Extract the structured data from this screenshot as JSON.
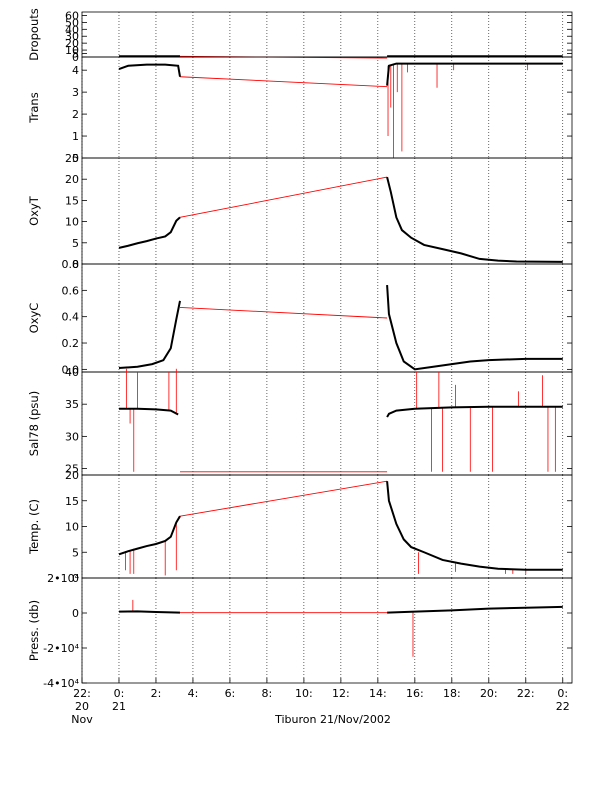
{
  "chart_data": {
    "type": "line",
    "caption": "Tiburon 21/Nov/2002",
    "colors": {
      "data": "#000000",
      "gap_and_spikes": "#ff0000",
      "grid_dots": "#000000"
    },
    "x_axis": {
      "unit": "hours from 21 Nov 2002 00:00",
      "range": [
        -2,
        24.5
      ],
      "ticks": [
        {
          "value": -2,
          "lines": [
            "22:",
            "20",
            "Nov"
          ]
        },
        {
          "value": 0,
          "lines": [
            "0:",
            "21"
          ]
        },
        {
          "value": 2,
          "lines": [
            "2:"
          ]
        },
        {
          "value": 4,
          "lines": [
            "4:"
          ]
        },
        {
          "value": 6,
          "lines": [
            "6:"
          ]
        },
        {
          "value": 8,
          "lines": [
            "8:"
          ]
        },
        {
          "value": 10,
          "lines": [
            "10:"
          ]
        },
        {
          "value": 12,
          "lines": [
            "12:"
          ]
        },
        {
          "value": 14,
          "lines": [
            "14:"
          ]
        },
        {
          "value": 16,
          "lines": [
            "16:"
          ]
        },
        {
          "value": 18,
          "lines": [
            "18:"
          ]
        },
        {
          "value": 20,
          "lines": [
            "20:"
          ]
        },
        {
          "value": 22,
          "lines": [
            "22:"
          ]
        },
        {
          "value": 24,
          "lines": [
            "0:",
            "22"
          ]
        }
      ]
    },
    "data_gap": {
      "start": 3.3,
      "end": 14.5
    },
    "panels": [
      {
        "id": "dropouts",
        "ylabel": "Dropouts",
        "ylim": [
          0,
          65
        ],
        "ticks": [
          {
            "v": 0,
            "t": "0"
          },
          {
            "v": 5,
            "t": "5"
          },
          {
            "v": 10,
            "t": "10"
          },
          {
            "v": 20,
            "t": "20"
          },
          {
            "v": 30,
            "t": "30"
          },
          {
            "v": 40,
            "t": "40"
          },
          {
            "v": 50,
            "t": "50"
          },
          {
            "v": 60,
            "t": "60"
          }
        ],
        "series": [
          {
            "x": 0,
            "y": 1
          },
          {
            "x": 1,
            "y": 1
          },
          {
            "x": 2,
            "y": 1
          },
          {
            "x": 3.3,
            "y": 1
          },
          {
            "x": 14.5,
            "y": 1
          },
          {
            "x": 16,
            "y": 1
          },
          {
            "x": 20,
            "y": 1
          },
          {
            "x": 24,
            "y": 1
          }
        ],
        "gap_line": [
          {
            "x": 3.3,
            "y": 1
          },
          {
            "x": 14.5,
            "y": -1.5
          }
        ],
        "spikes": []
      },
      {
        "id": "trans",
        "ylabel": "Trans",
        "ylim": [
          0,
          4.6
        ],
        "ticks": [
          {
            "v": 0,
            "t": "0"
          },
          {
            "v": 1,
            "t": "1"
          },
          {
            "v": 2,
            "t": "2"
          },
          {
            "v": 3,
            "t": "3"
          },
          {
            "v": 4,
            "t": "4"
          }
        ],
        "series": [
          {
            "x": 0,
            "y": 4.05
          },
          {
            "x": 0.5,
            "y": 4.2
          },
          {
            "x": 1.5,
            "y": 4.25
          },
          {
            "x": 2.5,
            "y": 4.25
          },
          {
            "x": 3.2,
            "y": 4.2
          },
          {
            "x": 3.3,
            "y": 3.7
          },
          {
            "x": 14.5,
            "y": 3.3
          },
          {
            "x": 14.6,
            "y": 4.2
          },
          {
            "x": 15,
            "y": 4.3
          },
          {
            "x": 18,
            "y": 4.3
          },
          {
            "x": 21,
            "y": 4.3
          },
          {
            "x": 24,
            "y": 4.3
          }
        ],
        "gap_line": [
          {
            "x": 3.3,
            "y": 3.7
          },
          {
            "x": 14.5,
            "y": 3.25
          }
        ],
        "spikes": [
          {
            "x": 14.55,
            "y": 1.0
          },
          {
            "x": 14.7,
            "y": 2.3
          },
          {
            "x": 14.85,
            "y": 0.0
          },
          {
            "x": 15.05,
            "y": 3.0
          },
          {
            "x": 15.3,
            "y": 0.3
          },
          {
            "x": 15.6,
            "y": 3.9
          },
          {
            "x": 17.2,
            "y": 3.2
          },
          {
            "x": 18.1,
            "y": 4.0
          },
          {
            "x": 22.1,
            "y": 4.0
          }
        ]
      },
      {
        "id": "oxyt",
        "ylabel": "OxyT",
        "ylim": [
          0,
          25
        ],
        "ticks": [
          {
            "v": 0,
            "t": "0"
          },
          {
            "v": 5,
            "t": "5"
          },
          {
            "v": 10,
            "t": "10"
          },
          {
            "v": 15,
            "t": "15"
          },
          {
            "v": 20,
            "t": "20"
          },
          {
            "v": 25,
            "t": "25"
          }
        ],
        "series": [
          {
            "x": 0,
            "y": 3.8
          },
          {
            "x": 0.5,
            "y": 4.3
          },
          {
            "x": 1,
            "y": 4.9
          },
          {
            "x": 1.5,
            "y": 5.4
          },
          {
            "x": 2,
            "y": 6.0
          },
          {
            "x": 2.5,
            "y": 6.5
          },
          {
            "x": 2.8,
            "y": 7.5
          },
          {
            "x": 3.1,
            "y": 10.2
          },
          {
            "x": 3.3,
            "y": 11.0
          },
          {
            "x": 14.5,
            "y": 20.5
          },
          {
            "x": 14.7,
            "y": 17.0
          },
          {
            "x": 15.0,
            "y": 11.0
          },
          {
            "x": 15.3,
            "y": 8.0
          },
          {
            "x": 15.8,
            "y": 6.2
          },
          {
            "x": 16.5,
            "y": 4.5
          },
          {
            "x": 17.5,
            "y": 3.5
          },
          {
            "x": 18.5,
            "y": 2.5
          },
          {
            "x": 19.5,
            "y": 1.2
          },
          {
            "x": 20.5,
            "y": 0.8
          },
          {
            "x": 21.5,
            "y": 0.6
          },
          {
            "x": 24,
            "y": 0.5
          }
        ],
        "gap_line": [
          {
            "x": 3.3,
            "y": 11.0
          },
          {
            "x": 14.5,
            "y": 20.5
          }
        ],
        "spikes": []
      },
      {
        "id": "oxyc",
        "ylabel": "OxyC",
        "ylim": [
          -0.02,
          0.8
        ],
        "ticks": [
          {
            "v": 0,
            "t": "0.0"
          },
          {
            "v": 0.2,
            "t": "0.2"
          },
          {
            "v": 0.4,
            "t": "0.4"
          },
          {
            "v": 0.6,
            "t": "0.6"
          },
          {
            "v": 0.8,
            "t": "0.8"
          }
        ],
        "series": [
          {
            "x": 0,
            "y": 0.01
          },
          {
            "x": 1,
            "y": 0.02
          },
          {
            "x": 1.8,
            "y": 0.04
          },
          {
            "x": 2.4,
            "y": 0.07
          },
          {
            "x": 2.8,
            "y": 0.16
          },
          {
            "x": 3.1,
            "y": 0.38
          },
          {
            "x": 3.3,
            "y": 0.52
          },
          {
            "x": 14.5,
            "y": 0.64
          },
          {
            "x": 14.6,
            "y": 0.42
          },
          {
            "x": 15.0,
            "y": 0.2
          },
          {
            "x": 15.4,
            "y": 0.06
          },
          {
            "x": 16,
            "y": 0.0
          },
          {
            "x": 17,
            "y": 0.02
          },
          {
            "x": 18,
            "y": 0.04
          },
          {
            "x": 19,
            "y": 0.06
          },
          {
            "x": 20,
            "y": 0.07
          },
          {
            "x": 22,
            "y": 0.08
          },
          {
            "x": 24,
            "y": 0.08
          }
        ],
        "gap_line": [
          {
            "x": 3.3,
            "y": 0.47
          },
          {
            "x": 14.5,
            "y": 0.39
          }
        ],
        "spikes": []
      },
      {
        "id": "sal78",
        "ylabel": "Sal78 (psu)",
        "ylim": [
          24,
          40
        ],
        "ticks": [
          {
            "v": 25,
            "t": "25"
          },
          {
            "v": 30,
            "t": "30"
          },
          {
            "v": 35,
            "t": "35"
          },
          {
            "v": 40,
            "t": "40"
          }
        ],
        "series": [
          {
            "x": 0,
            "y": 34.3
          },
          {
            "x": 1,
            "y": 34.3
          },
          {
            "x": 2,
            "y": 34.2
          },
          {
            "x": 2.8,
            "y": 34.0
          },
          {
            "x": 3.2,
            "y": 33.4
          },
          {
            "x": 14.5,
            "y": 33.0
          },
          {
            "x": 14.6,
            "y": 33.5
          },
          {
            "x": 15,
            "y": 34.0
          },
          {
            "x": 16,
            "y": 34.3
          },
          {
            "x": 18,
            "y": 34.5
          },
          {
            "x": 20,
            "y": 34.6
          },
          {
            "x": 24,
            "y": 34.6
          }
        ],
        "gap_line": [
          {
            "x": 3.3,
            "y": 24.5
          },
          {
            "x": 14.5,
            "y": 24.5
          }
        ],
        "spikes": [
          {
            "x": 0.4,
            "y": 40.5
          },
          {
            "x": 0.6,
            "y": 32.0
          },
          {
            "x": 0.8,
            "y": 24.5
          },
          {
            "x": 1.0,
            "y": 40.0
          },
          {
            "x": 2.7,
            "y": 40.0
          },
          {
            "x": 3.1,
            "y": 40.5
          },
          {
            "x": 16.1,
            "y": 40.0
          },
          {
            "x": 16.9,
            "y": 24.5
          },
          {
            "x": 17.3,
            "y": 40.0
          },
          {
            "x": 17.5,
            "y": 24.5
          },
          {
            "x": 18.2,
            "y": 38.0
          },
          {
            "x": 19.0,
            "y": 24.5
          },
          {
            "x": 20.2,
            "y": 24.5
          },
          {
            "x": 21.6,
            "y": 37.0
          },
          {
            "x": 22.9,
            "y": 39.5
          },
          {
            "x": 23.2,
            "y": 24.5
          },
          {
            "x": 23.6,
            "y": 24.5
          }
        ]
      },
      {
        "id": "temp",
        "ylabel": "Temp. (C)",
        "ylim": [
          0,
          20
        ],
        "ticks": [
          {
            "v": 0,
            "t": "0"
          },
          {
            "v": 5,
            "t": "5"
          },
          {
            "v": 10,
            "t": "10"
          },
          {
            "v": 15,
            "t": "15"
          },
          {
            "v": 20,
            "t": "20"
          }
        ],
        "series": [
          {
            "x": 0,
            "y": 4.6
          },
          {
            "x": 0.5,
            "y": 5.2
          },
          {
            "x": 1,
            "y": 5.7
          },
          {
            "x": 1.5,
            "y": 6.2
          },
          {
            "x": 2,
            "y": 6.6
          },
          {
            "x": 2.5,
            "y": 7.2
          },
          {
            "x": 2.8,
            "y": 8.0
          },
          {
            "x": 3.1,
            "y": 10.8
          },
          {
            "x": 3.3,
            "y": 12.0
          },
          {
            "x": 14.5,
            "y": 18.8
          },
          {
            "x": 14.6,
            "y": 15.0
          },
          {
            "x": 15.0,
            "y": 10.5
          },
          {
            "x": 15.4,
            "y": 7.5
          },
          {
            "x": 15.8,
            "y": 6.0
          },
          {
            "x": 16.5,
            "y": 5.0
          },
          {
            "x": 17.5,
            "y": 3.5
          },
          {
            "x": 18.5,
            "y": 2.8
          },
          {
            "x": 19.5,
            "y": 2.2
          },
          {
            "x": 20.5,
            "y": 1.8
          },
          {
            "x": 22,
            "y": 1.6
          },
          {
            "x": 24,
            "y": 1.6
          }
        ],
        "gap_line": [
          {
            "x": 3.3,
            "y": 12.0
          },
          {
            "x": 14.5,
            "y": 18.8
          }
        ],
        "spikes": [
          {
            "x": 0.35,
            "y": 1.5
          },
          {
            "x": 0.6,
            "y": 0.8
          },
          {
            "x": 0.8,
            "y": 0.8
          },
          {
            "x": 2.5,
            "y": 0.5
          },
          {
            "x": 3.1,
            "y": 1.5
          },
          {
            "x": 16.2,
            "y": 0.8
          },
          {
            "x": 18.2,
            "y": 1.2
          },
          {
            "x": 20.9,
            "y": 0.8
          },
          {
            "x": 21.3,
            "y": 0.8
          },
          {
            "x": 22.0,
            "y": 0.8
          }
        ]
      },
      {
        "id": "press",
        "ylabel": "Press. (db)",
        "ylim": [
          -40000,
          20000
        ],
        "ticks": [
          {
            "v": 20000,
            "t": "2•10⁴"
          },
          {
            "v": 0,
            "t": "0"
          },
          {
            "v": -20000,
            "t": "-2•10⁴"
          },
          {
            "v": -40000,
            "t": "-4•10⁴"
          }
        ],
        "series": [
          {
            "x": 0,
            "y": 800
          },
          {
            "x": 1,
            "y": 900
          },
          {
            "x": 2,
            "y": 600
          },
          {
            "x": 3.3,
            "y": 200
          },
          {
            "x": 14.5,
            "y": 200
          },
          {
            "x": 16,
            "y": 800
          },
          {
            "x": 18,
            "y": 1500
          },
          {
            "x": 20,
            "y": 2500
          },
          {
            "x": 22,
            "y": 3000
          },
          {
            "x": 24,
            "y": 3500
          }
        ],
        "gap_line": [
          {
            "x": 3.3,
            "y": 200
          },
          {
            "x": 14.5,
            "y": 200
          }
        ],
        "spikes": [
          {
            "x": 0.75,
            "y": 7500
          },
          {
            "x": 15.9,
            "y": -25000
          }
        ]
      }
    ]
  }
}
